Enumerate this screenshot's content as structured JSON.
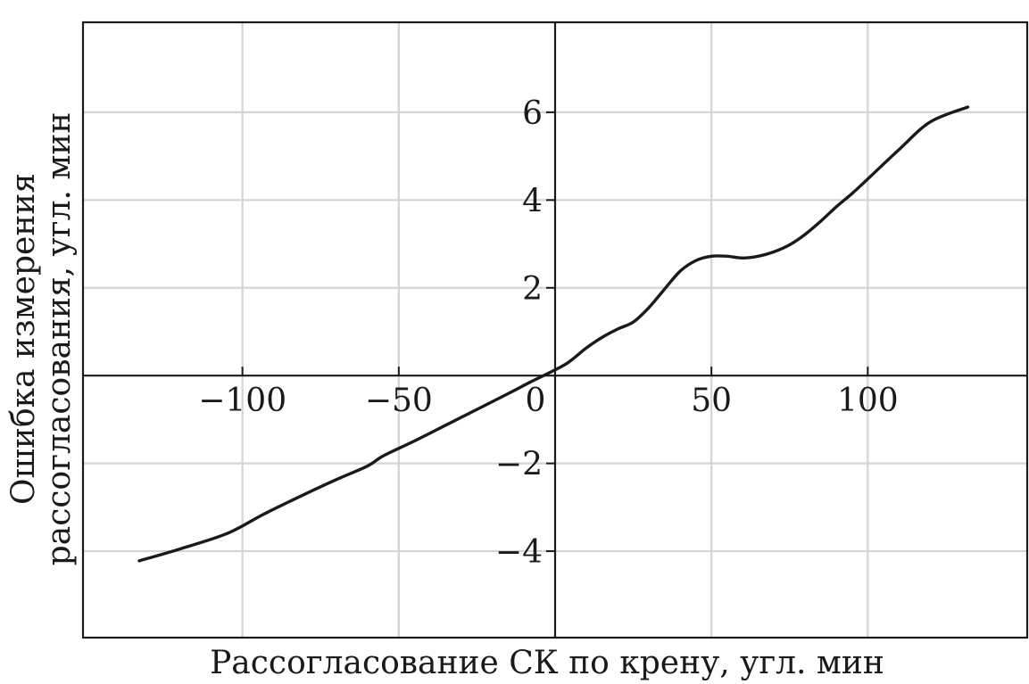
{
  "chart_data": {
    "type": "line",
    "title": "",
    "xlabel": "Рассогласование СК по крену, угл. мин",
    "ylabel_lines": [
      "Ошибка измерения",
      "рассогласования, угл. мин"
    ],
    "xlim": [
      -151,
      151
    ],
    "ylim": [
      -5.97,
      8.05
    ],
    "x_ticks": [
      -100,
      -50,
      0,
      50,
      100
    ],
    "x_tick_labels": [
      "−100",
      "−50",
      "0",
      "50",
      "100"
    ],
    "y_ticks": [
      6,
      4,
      2,
      -2,
      -4
    ],
    "y_tick_labels": [
      "6",
      "4",
      "2",
      "−2",
      "−4"
    ],
    "grid": true,
    "legend": "none",
    "series": [
      {
        "color": "#1a1a1a",
        "x": [
          -133,
          -120,
          -105,
          -93,
          -80,
          -70,
          -60,
          -55,
          -45,
          -35,
          -25,
          -15,
          -8,
          -2,
          4,
          10,
          15,
          20,
          25,
          30,
          35,
          40,
          45,
          50,
          55,
          60,
          65,
          70,
          75,
          80,
          85,
          90,
          95,
          100,
          110,
          120,
          132
        ],
        "y": [
          -4.22,
          -3.95,
          -3.6,
          -3.15,
          -2.7,
          -2.37,
          -2.06,
          -1.83,
          -1.49,
          -1.13,
          -0.77,
          -0.41,
          -0.15,
          0.06,
          0.29,
          0.63,
          0.87,
          1.06,
          1.22,
          1.55,
          1.97,
          2.38,
          2.62,
          2.72,
          2.72,
          2.68,
          2.72,
          2.82,
          2.98,
          3.22,
          3.52,
          3.85,
          4.15,
          4.48,
          5.15,
          5.78,
          6.12
        ]
      }
    ]
  }
}
